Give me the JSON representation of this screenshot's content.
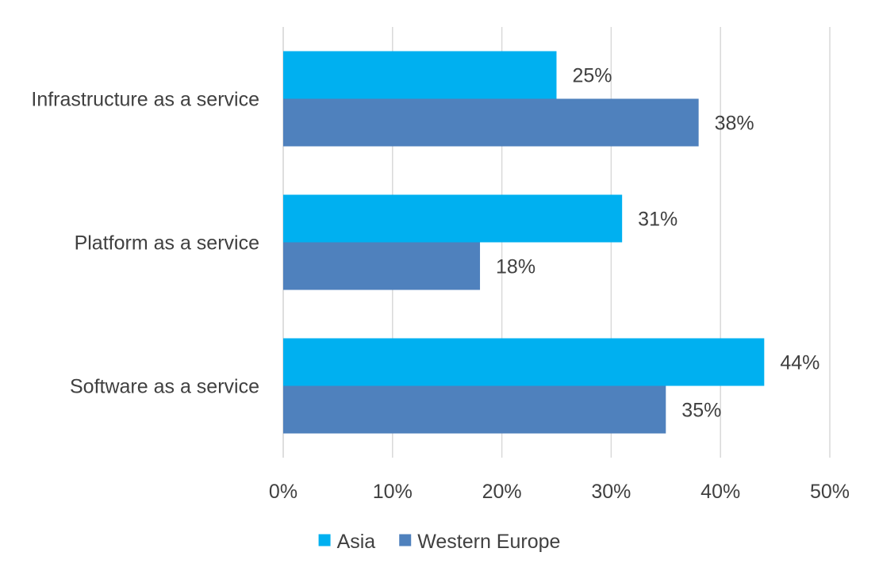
{
  "chart_data": {
    "type": "bar",
    "orientation": "horizontal",
    "categories": [
      "Infrastructure as a service",
      "Platform as a service",
      "Software as a service"
    ],
    "series": [
      {
        "name": "Asia",
        "values": [
          25,
          31,
          44
        ],
        "color": "#00B0F0"
      },
      {
        "name": "Western Europe",
        "values": [
          38,
          18,
          35
        ],
        "color": "#4F81BD"
      }
    ],
    "value_format": "percent",
    "xlim": [
      0,
      50
    ],
    "x_ticks": [
      0,
      10,
      20,
      30,
      40,
      50
    ],
    "x_tick_labels": [
      "0%",
      "10%",
      "20%",
      "30%",
      "40%",
      "50%"
    ],
    "grid": "vertical",
    "gridline_color": "#D9D9D9",
    "legend_position": "bottom",
    "data_labels": true,
    "title": "",
    "xlabel": "",
    "ylabel": ""
  }
}
